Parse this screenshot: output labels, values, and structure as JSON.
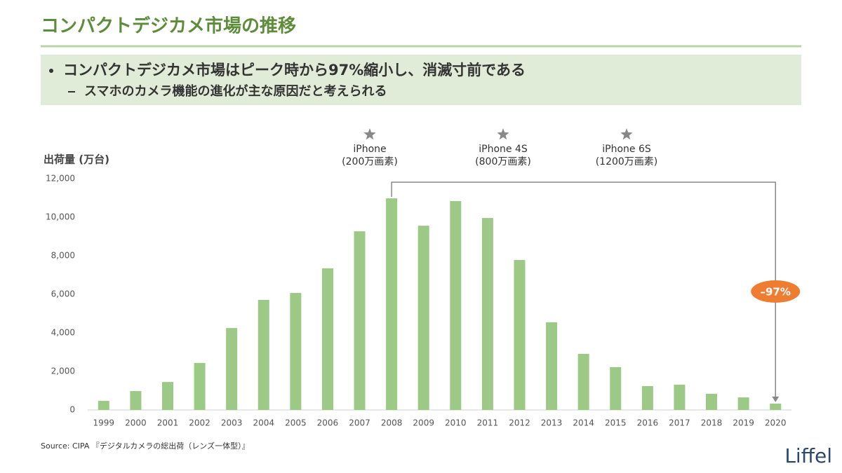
{
  "header": {
    "title": "コンパクトデジカメ市場の推移",
    "bullet": "コンパクトデジカメ市場はピーク時から97%縮小し、消滅寸前である",
    "sub_bullet": "スマホのカメラ機能の進化が主な原因だと考えられる"
  },
  "chart_data": {
    "type": "bar",
    "y_label": "出荷量 (万台)",
    "categories": [
      "1999",
      "2000",
      "2001",
      "2002",
      "2003",
      "2004",
      "2005",
      "2006",
      "2007",
      "2008",
      "2009",
      "2010",
      "2011",
      "2012",
      "2013",
      "2014",
      "2015",
      "2016",
      "2017",
      "2018",
      "2019",
      "2020"
    ],
    "values": [
      470,
      980,
      1450,
      2440,
      4250,
      5710,
      6070,
      7350,
      9270,
      10980,
      9560,
      10840,
      9960,
      7780,
      4550,
      2910,
      2220,
      1240,
      1310,
      840,
      650,
      330
    ],
    "color": "#9cc985",
    "ylim": [
      0,
      12000
    ],
    "yticks": [
      0,
      {
        "value": 2000,
        "label": "2,000"
      },
      {
        "value": 4000,
        "label": "4,000"
      },
      {
        "value": 6000,
        "label": "6,000"
      },
      {
        "value": 8000,
        "label": "8,000"
      },
      {
        "value": 10000,
        "label": "10,000"
      },
      {
        "value": 12000,
        "label": "12,000"
      }
    ],
    "annotations": [
      {
        "label": "iPhone",
        "detail": "(200万画素)"
      },
      {
        "label": "iPhone 4S",
        "detail": "(800万画素)"
      },
      {
        "label": "iPhone 6S",
        "detail": "(1200万画素)"
      }
    ],
    "change_label": "–97%"
  },
  "source": "Source: CIPA 『デジタルカメラの総出荷（レンズ一体型）』",
  "logo": "Liffel"
}
